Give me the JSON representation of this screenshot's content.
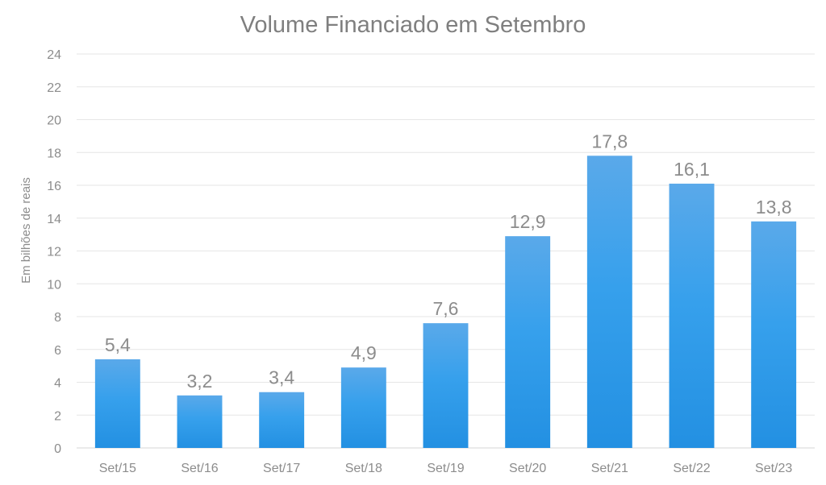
{
  "chart_data": {
    "type": "bar",
    "title": "Volume Financiado em Setembro",
    "ylabel": "Em bilhões de reais",
    "xlabel": "",
    "categories": [
      "Set/15",
      "Set/16",
      "Set/17",
      "Set/18",
      "Set/19",
      "Set/20",
      "Set/21",
      "Set/22",
      "Set/23"
    ],
    "values": [
      5.4,
      3.2,
      3.4,
      4.9,
      7.6,
      12.9,
      17.8,
      16.1,
      13.8
    ],
    "data_labels": [
      "5,4",
      "3,2",
      "3,4",
      "4,9",
      "7,6",
      "12,9",
      "17,8",
      "16,1",
      "13,8"
    ],
    "ylim": [
      0,
      24
    ],
    "yticks": [
      "0",
      "2",
      "4",
      "6",
      "8",
      "10",
      "12",
      "14",
      "16",
      "18",
      "20",
      "22",
      "24"
    ],
    "grid": true,
    "legend": "none",
    "colors": {
      "bar_top": "#5aa9ea",
      "bar_bottom": "#2390e2",
      "text": "#8c8c8c",
      "title": "#7f7f7f",
      "grid": "#e6e6e6"
    }
  }
}
